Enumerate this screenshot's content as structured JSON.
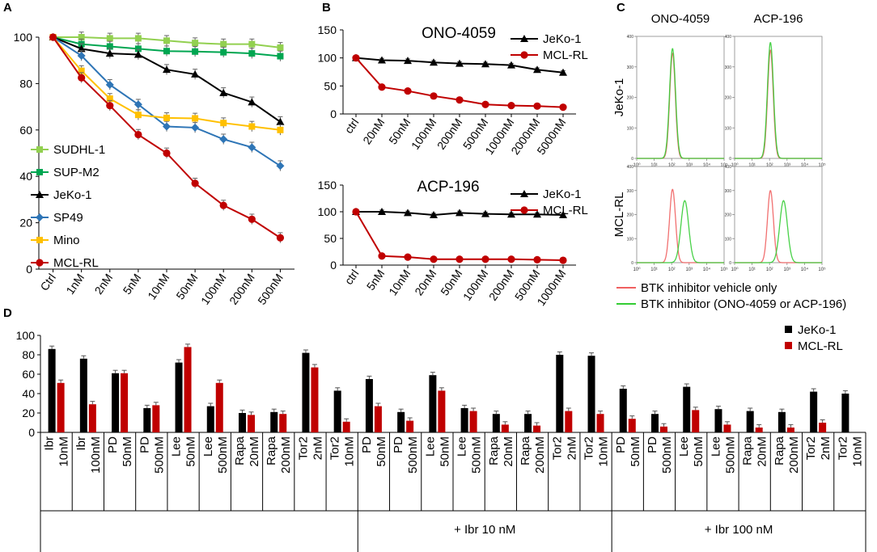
{
  "colors": {
    "sudhl1": "#92d050",
    "supm2": "#00a651",
    "jeko1": "#000000",
    "sp49": "#2e75b6",
    "mino": "#ffc000",
    "mclrl": "#c00000",
    "red_flow": "#f06060",
    "green_flow": "#33cc33",
    "black_bar": "#000000",
    "red_bar": "#c00000"
  },
  "panel_letters": {
    "a": "A",
    "b": "B",
    "c": "C",
    "d": "D"
  },
  "chart_data": [
    {
      "id": "A",
      "type": "line",
      "title": "",
      "xlabel": "",
      "ylabel": "",
      "categories": [
        "Ctrl",
        "1nM",
        "2nM",
        "5nM",
        "10nM",
        "50nM",
        "100nM",
        "200nM",
        "500nM"
      ],
      "ylim": [
        0,
        100
      ],
      "yticks": [
        0,
        20,
        40,
        60,
        80,
        100
      ],
      "legend_position": "left",
      "series": [
        {
          "name": "SUDHL-1",
          "color": "#92d050",
          "marker": "square",
          "values": [
            100,
            100,
            99.5,
            99.5,
            98.5,
            97.5,
            97,
            97,
            95.5
          ]
        },
        {
          "name": "SUP-M2",
          "color": "#00a651",
          "marker": "square",
          "values": [
            100,
            97,
            96,
            95,
            94,
            93.8,
            93.5,
            93,
            91.8
          ]
        },
        {
          "name": "JeKo-1",
          "color": "#000000",
          "marker": "triangle",
          "values": [
            100,
            95,
            93,
            92.5,
            86,
            84,
            76,
            72,
            63.5
          ]
        },
        {
          "name": "SP49",
          "color": "#2e75b6",
          "marker": "diamond",
          "values": [
            100,
            92,
            79.5,
            71,
            61.5,
            61,
            56,
            52.5,
            44.5
          ]
        },
        {
          "name": "Mino",
          "color": "#ffc000",
          "marker": "square",
          "values": [
            100,
            85.5,
            73.5,
            66.5,
            65.2,
            65,
            63,
            61.5,
            60
          ]
        },
        {
          "name": "MCL-RL",
          "color": "#c00000",
          "marker": "circle",
          "values": [
            100,
            82.5,
            70.5,
            58,
            50,
            37,
            27.5,
            21.5,
            13.5
          ]
        }
      ]
    },
    {
      "id": "B-top",
      "type": "line",
      "title": "ONO-4059",
      "xlabel": "",
      "ylabel": "",
      "categories": [
        "ctrl",
        "20nM",
        "50nM",
        "100nM",
        "200nM",
        "500nM",
        "1000nM",
        "2000nM",
        "5000nM"
      ],
      "ylim": [
        0,
        150
      ],
      "yticks": [
        0,
        50,
        100,
        150
      ],
      "legend_position": "top-right",
      "series": [
        {
          "name": "JeKo-1",
          "color": "#000000",
          "marker": "triangle",
          "values": [
            100,
            96,
            95,
            92,
            90,
            89,
            87,
            79,
            74
          ]
        },
        {
          "name": "MCL-RL",
          "color": "#c00000",
          "marker": "circle",
          "values": [
            100,
            48,
            41,
            32,
            25,
            17,
            15,
            14,
            12
          ]
        }
      ]
    },
    {
      "id": "B-bottom",
      "type": "line",
      "title": "ACP-196",
      "xlabel": "",
      "ylabel": "",
      "categories": [
        "ctrl",
        "5nM",
        "10nM",
        "20nM",
        "50nM",
        "100nM",
        "200nM",
        "500nM",
        "1000nM"
      ],
      "ylim": [
        0,
        150
      ],
      "yticks": [
        0,
        50,
        100,
        150
      ],
      "legend_position": "top-right",
      "series": [
        {
          "name": "JeKo-1",
          "color": "#000000",
          "marker": "triangle",
          "values": [
            100,
            100,
            98,
            94,
            98,
            96,
            95,
            95,
            94
          ]
        },
        {
          "name": "MCL-RL",
          "color": "#c00000",
          "marker": "circle",
          "values": [
            100,
            17,
            15,
            11,
            11,
            11,
            11,
            10,
            9
          ]
        }
      ]
    },
    {
      "id": "C",
      "type": "histogram",
      "column_titles": [
        "ONO-4059",
        "ACP-196"
      ],
      "row_labels": [
        "JeKo-1",
        "MCL-RL"
      ],
      "ytick_labels": [
        "0",
        "100",
        "200",
        "300",
        "400"
      ],
      "ytick_values": [
        0,
        100,
        200,
        300,
        400
      ],
      "xtick_labels": [
        "10⁰",
        "10¹",
        "10²",
        "10³",
        "10⁴",
        "10⁵"
      ],
      "xlim_log": [
        0,
        5
      ],
      "legend": [
        {
          "name": "BTK inhibitor vehicle only",
          "color": "#f06060"
        },
        {
          "name": "BTK inhibitor (ONO-4059 or ACP-196)",
          "color": "#33cc33"
        }
      ],
      "peaks": [
        {
          "panel": "JeKo-1 / ONO-4059",
          "red": {
            "center": 2.05,
            "width": 0.16,
            "height": 345
          },
          "green": {
            "center": 2.05,
            "width": 0.17,
            "height": 360
          }
        },
        {
          "panel": "JeKo-1 / ACP-196",
          "red": {
            "center": 2.05,
            "width": 0.16,
            "height": 355
          },
          "green": {
            "center": 2.05,
            "width": 0.17,
            "height": 380
          }
        },
        {
          "panel": "MCL-RL / ONO-4059",
          "red": {
            "center": 2.05,
            "width": 0.17,
            "height": 305
          },
          "green": {
            "center": 2.75,
            "width": 0.22,
            "height": 258
          }
        },
        {
          "panel": "MCL-RL / ACP-196",
          "red": {
            "center": 2.05,
            "width": 0.17,
            "height": 300
          },
          "green": {
            "center": 2.8,
            "width": 0.22,
            "height": 258
          }
        }
      ]
    },
    {
      "id": "D",
      "type": "bar",
      "ylim": [
        0,
        100
      ],
      "yticks": [
        0,
        20,
        40,
        60,
        80,
        100
      ],
      "legend_position": "top-right",
      "series_names": [
        "JeKo-1",
        "MCL-RL"
      ],
      "categories": [
        {
          "drug": "Ibr",
          "dose": "10nM"
        },
        {
          "drug": "Ibr",
          "dose": "100nM"
        },
        {
          "drug": "PD",
          "dose": "50nM"
        },
        {
          "drug": "PD",
          "dose": "500nM"
        },
        {
          "drug": "Lee",
          "dose": "50nM"
        },
        {
          "drug": "Lee",
          "dose": "500nM"
        },
        {
          "drug": "Rapa",
          "dose": "20nM"
        },
        {
          "drug": "Rapa",
          "dose": "200nM"
        },
        {
          "drug": "Tor2",
          "dose": "2nM"
        },
        {
          "drug": "Tor2",
          "dose": "10nM"
        },
        {
          "drug": "PD",
          "dose": "50nM"
        },
        {
          "drug": "PD",
          "dose": "500nM"
        },
        {
          "drug": "Lee",
          "dose": "50nM"
        },
        {
          "drug": "Lee",
          "dose": "500nM"
        },
        {
          "drug": "Rapa",
          "dose": "20nM"
        },
        {
          "drug": "Rapa",
          "dose": "200nM"
        },
        {
          "drug": "Tor2",
          "dose": "2nM"
        },
        {
          "drug": "Tor2",
          "dose": "10nM"
        },
        {
          "drug": "PD",
          "dose": "50nM"
        },
        {
          "drug": "PD",
          "dose": "500nM"
        },
        {
          "drug": "Lee",
          "dose": "50nM"
        },
        {
          "drug": "Lee",
          "dose": "500nM"
        },
        {
          "drug": "Rapa",
          "dose": "20nM"
        },
        {
          "drug": "Rapa",
          "dose": "200nM"
        },
        {
          "drug": "Tor2",
          "dose": "2nM"
        },
        {
          "drug": "Tor2",
          "dose": "10nM"
        }
      ],
      "jeko1": [
        86,
        76,
        61,
        25,
        72,
        27,
        20,
        21,
        82,
        43,
        55,
        21,
        59,
        25,
        19,
        19,
        80,
        79,
        45,
        19,
        47,
        24,
        22,
        21,
        42,
        40
      ],
      "mclrl": [
        51,
        29,
        61,
        28,
        88,
        51,
        18,
        19,
        67,
        11,
        27,
        12,
        43,
        22,
        8,
        7,
        22,
        19,
        14,
        6,
        23,
        8,
        5,
        5,
        10,
        null
      ],
      "groups": [
        {
          "label": "",
          "start": 0,
          "end": 9
        },
        {
          "label": "+ Ibr 10 nM",
          "start": 10,
          "end": 17
        },
        {
          "label": "+ Ibr 100 nM",
          "start": 18,
          "end": 25
        }
      ]
    }
  ]
}
